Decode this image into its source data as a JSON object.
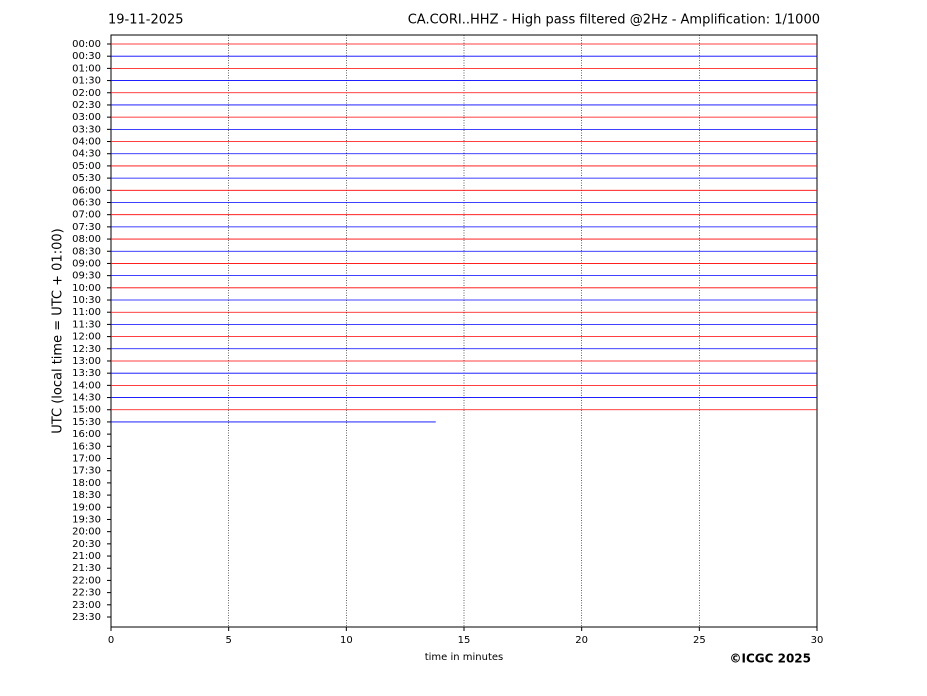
{
  "chart_data": {
    "type": "helicorder",
    "date": "19-11-2025",
    "title": "CA.CORI..HHZ - High pass filtered @2Hz - Amplification: 1/1000",
    "xlabel": "time in minutes",
    "ylabel": "UTC (local time = UTC + 01:00)",
    "credit": "©ICGC 2025",
    "categories": [
      "00:00",
      "00:30",
      "01:00",
      "01:30",
      "02:00",
      "02:30",
      "03:00",
      "03:30",
      "04:00",
      "04:30",
      "05:00",
      "05:30",
      "06:00",
      "06:30",
      "07:00",
      "07:30",
      "08:00",
      "08:30",
      "09:00",
      "09:30",
      "10:00",
      "10:30",
      "11:00",
      "11:30",
      "12:00",
      "12:30",
      "13:00",
      "13:30",
      "14:00",
      "14:30",
      "15:00",
      "15:30",
      "16:00",
      "16:30",
      "17:00",
      "17:30",
      "18:00",
      "18:30",
      "19:00",
      "19:30",
      "20:00",
      "20:30",
      "21:00",
      "21:30",
      "22:00",
      "22:30",
      "23:00",
      "23:30"
    ],
    "values": [
      30,
      30,
      30,
      30,
      30,
      30,
      30,
      30,
      30,
      30,
      30,
      30,
      30,
      30,
      30,
      30,
      30,
      30,
      30,
      30,
      30,
      30,
      30,
      30,
      30,
      30,
      30,
      30,
      30,
      30,
      30,
      13.8,
      null,
      null,
      null,
      null,
      null,
      null,
      null,
      null,
      null,
      null,
      null,
      null,
      null,
      null,
      null,
      null
    ],
    "colors": [
      "#ff0000",
      "#0000ff"
    ],
    "xlim": [
      0,
      30
    ],
    "xticks": [
      0,
      5,
      10,
      15,
      20,
      25,
      30
    ],
    "grid": true
  }
}
